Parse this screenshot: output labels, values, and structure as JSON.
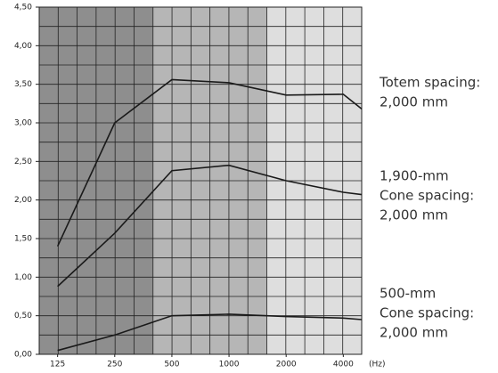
{
  "chart_data": {
    "type": "line",
    "x": [
      125,
      250,
      500,
      1000,
      2000,
      4000,
      5000
    ],
    "xlim": [
      100,
      5000
    ],
    "xscale": "log",
    "xticks": [
      125,
      250,
      500,
      1000,
      2000,
      4000
    ],
    "x_unit": "(Hz)",
    "ylim": [
      0,
      4.5
    ],
    "yticks": [
      {
        "value": 0,
        "label": "0,00"
      },
      {
        "value": 0.5,
        "label": "0,50"
      },
      {
        "value": 1,
        "label": "1,00"
      },
      {
        "value": 1.5,
        "label": "1,50"
      },
      {
        "value": 2,
        "label": "2,00"
      },
      {
        "value": 2.5,
        "label": "2,50"
      },
      {
        "value": 3,
        "label": "3,00"
      },
      {
        "value": 3.5,
        "label": "3,50"
      },
      {
        "value": 4,
        "label": "4,00"
      },
      {
        "value": 4.5,
        "label": "4,50"
      }
    ],
    "grid": true,
    "series": [
      {
        "label": [
          "Totem spacing:",
          "2,000 mm"
        ],
        "color": "#1a1a1a",
        "values": [
          1.4,
          3.0,
          3.56,
          3.52,
          3.36,
          3.37,
          3.18
        ]
      },
      {
        "label": [
          "1,900-mm",
          "Cone spacing:",
          "2,000 mm"
        ],
        "color": "#1a1a1a",
        "values": [
          0.88,
          1.57,
          2.38,
          2.45,
          2.25,
          2.1,
          2.07
        ]
      },
      {
        "label": [
          "500-mm",
          "Cone spacing:",
          "2,000 mm"
        ],
        "color": "#1a1a1a",
        "values": [
          0.05,
          0.25,
          0.5,
          0.52,
          0.49,
          0.47,
          0.45
        ]
      }
    ]
  }
}
